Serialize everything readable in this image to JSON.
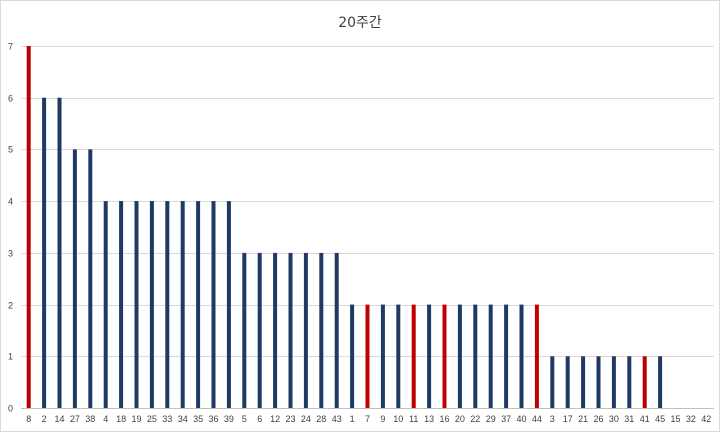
{
  "chart_data": {
    "type": "bar",
    "title": "20주간",
    "xlabel": "",
    "ylabel": "",
    "ylim": [
      0,
      7
    ],
    "yticks": [
      0,
      1,
      2,
      3,
      4,
      5,
      6,
      7
    ],
    "grid": true,
    "legend": "none",
    "colors": {
      "default": "#1f3864",
      "highlight": "#c00000"
    },
    "categories": [
      "8",
      "2",
      "14",
      "27",
      "38",
      "4",
      "18",
      "19",
      "25",
      "33",
      "34",
      "35",
      "36",
      "39",
      "5",
      "6",
      "12",
      "23",
      "24",
      "28",
      "43",
      "1",
      "7",
      "9",
      "10",
      "11",
      "13",
      "16",
      "20",
      "22",
      "29",
      "37",
      "40",
      "44",
      "3",
      "17",
      "21",
      "26",
      "30",
      "31",
      "41",
      "45",
      "15",
      "32",
      "42"
    ],
    "values": [
      7,
      6,
      6,
      5,
      5,
      4,
      4,
      4,
      4,
      4,
      4,
      4,
      4,
      4,
      3,
      3,
      3,
      3,
      3,
      3,
      3,
      2,
      2,
      2,
      2,
      2,
      2,
      2,
      2,
      2,
      2,
      2,
      2,
      2,
      1,
      1,
      1,
      1,
      1,
      1,
      1,
      1,
      0,
      0,
      0
    ],
    "highlighted": [
      "8",
      "7",
      "11",
      "16",
      "44",
      "41"
    ]
  }
}
